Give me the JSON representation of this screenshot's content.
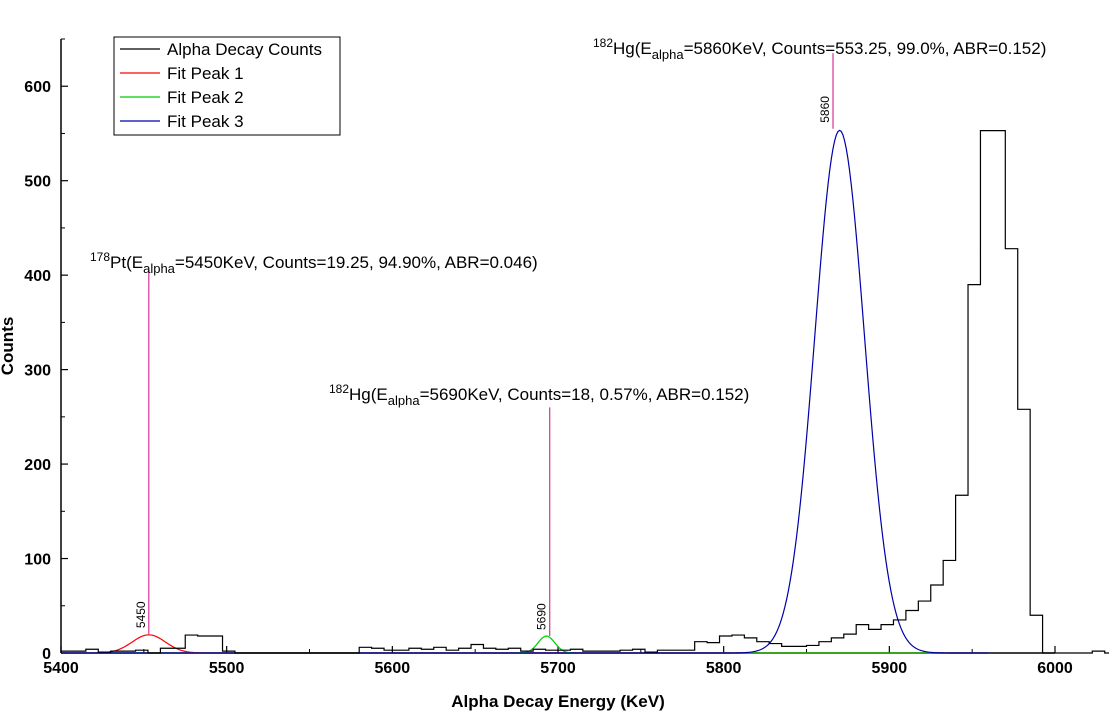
{
  "chart_data": {
    "type": "line",
    "xlabel": "Alpha Decay Energy (KeV)",
    "ylabel": "Counts",
    "xlim": [
      5400,
      6000
    ],
    "ylim": [
      0,
      650
    ],
    "x_ticks": [
      5400,
      5500,
      5600,
      5700,
      5800,
      5900,
      6000
    ],
    "y_ticks": [
      0,
      100,
      200,
      300,
      400,
      500,
      600
    ],
    "legend_position": "top-left",
    "histogram": {
      "name": "Alpha Decay Counts",
      "color": "#000000",
      "bin_width": 7.5,
      "start": 5400,
      "values": [
        2,
        2,
        4,
        1,
        2,
        2,
        3,
        0,
        5,
        5,
        19,
        18,
        18,
        2,
        0,
        0,
        0,
        0,
        0,
        0,
        0,
        0,
        0,
        0,
        6,
        5,
        3,
        3,
        5,
        4,
        6,
        3,
        5,
        9,
        5,
        4,
        5,
        2,
        4,
        3,
        3,
        4,
        2,
        2,
        2,
        3,
        4,
        1,
        3,
        3,
        3,
        12,
        11,
        18,
        19,
        16,
        12,
        10,
        7,
        7,
        8,
        12,
        16,
        20,
        30,
        25,
        30,
        35,
        45,
        55,
        72,
        98,
        167,
        390,
        553,
        553,
        428,
        258,
        40,
        0,
        0,
        0,
        0,
        2,
        0,
        5,
        0,
        0,
        0,
        0,
        0,
        0,
        0,
        0,
        0,
        0,
        0,
        0,
        0,
        0,
        0
      ]
    },
    "series": [
      {
        "name": "Fit Peak 1",
        "color": "#ff0000",
        "center": 5453,
        "amplitude": 19.25,
        "sigma": 10
      },
      {
        "name": "Fit Peak 2",
        "color": "#00cc00",
        "center": 5693,
        "amplitude": 18,
        "sigma": 5
      },
      {
        "name": "Fit Peak 3",
        "color": "#0000aa",
        "center": 5870,
        "amplitude": 553.25,
        "sigma": 15
      }
    ],
    "markers": [
      {
        "label": "5450",
        "x": 5453,
        "y_top": 405,
        "y_bottom": 20,
        "color": "#d63399"
      },
      {
        "label": "5690",
        "x": 5695,
        "y_top": 260,
        "y_bottom": 18,
        "color": "#d63399"
      },
      {
        "label": "5860",
        "x": 5866,
        "y_top": 635,
        "y_bottom": 555,
        "color": "#d63399"
      }
    ],
    "annotations": [
      {
        "sup": "178",
        "element": "Pt",
        "prefix": "(E",
        "sub": "alpha",
        "rest": "=5450KeV, Counts=19.25, 94.90%, ABR=0.046)"
      },
      {
        "sup": "182",
        "element": "Hg",
        "prefix": "(E",
        "sub": "alpha",
        "rest": "=5690KeV, Counts=18, 0.57%, ABR=0.152)"
      },
      {
        "sup": "182",
        "element": "Hg",
        "prefix": "(E",
        "sub": "alpha",
        "rest": "=5860KeV, Counts=553.25, 99.0%, ABR=0.152)"
      }
    ]
  }
}
